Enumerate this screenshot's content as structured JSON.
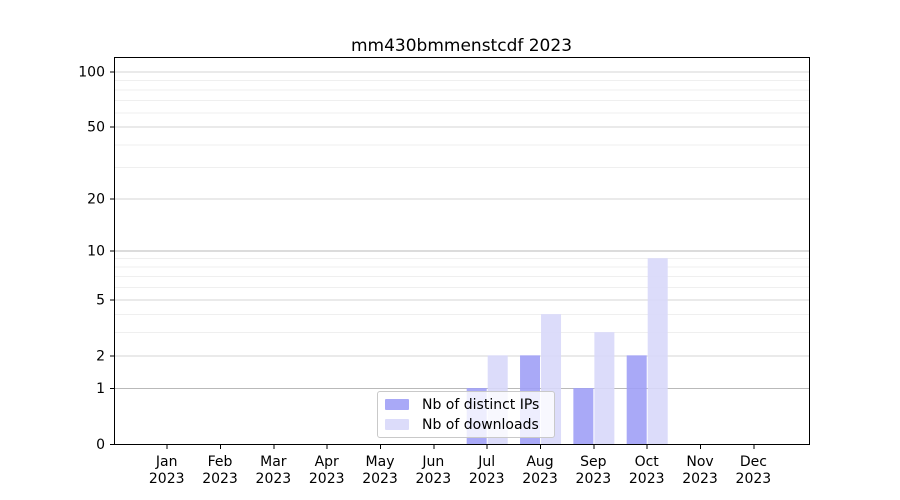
{
  "chart_data": {
    "type": "bar",
    "title": "mm430bmmenstcdf 2023",
    "categories": [
      "Jan",
      "Feb",
      "Mar",
      "Apr",
      "May",
      "Jun",
      "Jul",
      "Aug",
      "Sep",
      "Oct",
      "Nov",
      "Dec"
    ],
    "year": "2023",
    "series": [
      {
        "name": "Nb of distinct IPs",
        "color": "#a0a0f6",
        "values": [
          0,
          0,
          0,
          0,
          0,
          0,
          1,
          2,
          1,
          2,
          0,
          0
        ]
      },
      {
        "name": "Nb of downloads",
        "color": "#d8d8fa",
        "values": [
          0,
          0,
          0,
          0,
          0,
          0,
          2,
          4,
          3,
          9,
          0,
          0
        ]
      }
    ],
    "yscale": "log1p",
    "ylim": [
      0,
      120
    ],
    "ytick_values": [
      0,
      1,
      2,
      5,
      10,
      20,
      50,
      100
    ],
    "ytick_labels": [
      "0",
      "1",
      "2",
      "5",
      "10",
      "20",
      "50",
      "100"
    ],
    "minor_gridline_values": [
      3,
      4,
      6,
      7,
      8,
      9,
      30,
      40,
      60,
      70,
      80,
      90
    ],
    "grid": "horizontal",
    "legend_position": "lower center"
  }
}
